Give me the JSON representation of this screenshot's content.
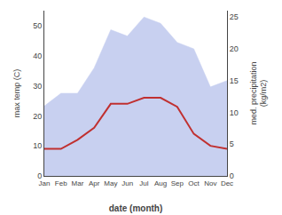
{
  "chart_data": {
    "type": "line",
    "categories": [
      "Jan",
      "Feb",
      "Mar",
      "Apr",
      "May",
      "Jun",
      "Jul",
      "Aug",
      "Sep",
      "Oct",
      "Nov",
      "Dec"
    ],
    "series": [
      {
        "type": "area",
        "axis": "y2",
        "color": "#c8d0f0",
        "values": [
          11,
          13,
          13,
          17,
          23,
          22,
          25,
          24,
          21,
          20,
          14,
          15
        ]
      },
      {
        "type": "line",
        "color": "#c03030",
        "values": [
          9,
          9,
          12,
          16,
          24,
          24,
          26,
          26,
          23,
          14,
          10,
          9
        ]
      }
    ],
    "xlabel": "date (month)",
    "ylabel": "max temp (C)",
    "y2label": "med. precipitation\n(kg/m2)",
    "ylim": [
      0,
      55
    ],
    "yticks": [
      0,
      10,
      20,
      30,
      40,
      50
    ],
    "y2lim": [
      0,
      26
    ],
    "y2ticks": [
      0,
      5,
      10,
      15,
      20,
      25
    ],
    "grid": false
  }
}
